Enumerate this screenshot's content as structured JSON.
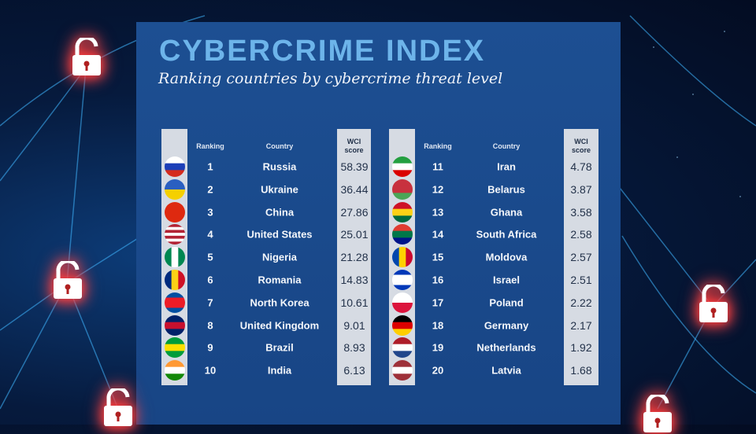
{
  "title": "CYBERCRIME INDEX",
  "subtitle": "Ranking countries by cybercrime threat level",
  "colors": {
    "title": "#6db4ea",
    "panel": "#1a4a8c",
    "score_box": "#d6dbe3",
    "lock_glow": "#ff3030"
  },
  "chart_data": {
    "type": "table",
    "columns": [
      "Ranking",
      "Country",
      "WCI score"
    ],
    "header_wci_lines": [
      "WCI",
      "score"
    ],
    "rows": [
      {
        "rank": 1,
        "country": "Russia",
        "score": 58.39,
        "flag": {
          "dir": "h",
          "colors": [
            "#ffffff",
            "#1c3fb8",
            "#d52b1e"
          ]
        }
      },
      {
        "rank": 2,
        "country": "Ukraine",
        "score": 36.44,
        "flag": {
          "dir": "h",
          "colors": [
            "#2a5fc1",
            "#f5d000"
          ]
        }
      },
      {
        "rank": 3,
        "country": "China",
        "score": 27.86,
        "flag": {
          "dir": "h",
          "colors": [
            "#de2910"
          ]
        }
      },
      {
        "rank": 4,
        "country": "United States",
        "score": 25.01,
        "flag": {
          "dir": "h",
          "colors": [
            "#b22234",
            "#ffffff",
            "#b22234",
            "#ffffff",
            "#b22234",
            "#ffffff",
            "#b22234"
          ]
        }
      },
      {
        "rank": 5,
        "country": "Nigeria",
        "score": 21.28,
        "flag": {
          "dir": "v",
          "colors": [
            "#008751",
            "#ffffff",
            "#008751"
          ]
        }
      },
      {
        "rank": 6,
        "country": "Romania",
        "score": 14.83,
        "flag": {
          "dir": "v",
          "colors": [
            "#002b7f",
            "#fcd116",
            "#ce1126"
          ]
        }
      },
      {
        "rank": 7,
        "country": "North Korea",
        "score": 10.61,
        "flag": {
          "dir": "h",
          "colors": [
            "#024fa2",
            "#ed1c27",
            "#ed1c27",
            "#024fa2"
          ]
        }
      },
      {
        "rank": 8,
        "country": "United Kingdom",
        "score": 9.01,
        "flag": {
          "dir": "h",
          "colors": [
            "#012169",
            "#c8102e",
            "#012169"
          ]
        }
      },
      {
        "rank": 9,
        "country": "Brazil",
        "score": 8.93,
        "flag": {
          "dir": "h",
          "colors": [
            "#009c3b",
            "#fedf00",
            "#009c3b"
          ]
        }
      },
      {
        "rank": 10,
        "country": "India",
        "score": 6.13,
        "flag": {
          "dir": "h",
          "colors": [
            "#ff9933",
            "#ffffff",
            "#138808"
          ]
        }
      },
      {
        "rank": 11,
        "country": "Iran",
        "score": 4.78,
        "flag": {
          "dir": "h",
          "colors": [
            "#239f40",
            "#ffffff",
            "#da0000"
          ]
        }
      },
      {
        "rank": 12,
        "country": "Belarus",
        "score": 3.87,
        "flag": {
          "dir": "h",
          "colors": [
            "#c8313e",
            "#c8313e",
            "#4aa657"
          ]
        }
      },
      {
        "rank": 13,
        "country": "Ghana",
        "score": 3.58,
        "flag": {
          "dir": "h",
          "colors": [
            "#ce1126",
            "#fcd116",
            "#006b3f"
          ]
        }
      },
      {
        "rank": 14,
        "country": "South Africa",
        "score": 2.58,
        "flag": {
          "dir": "h",
          "colors": [
            "#e03c31",
            "#007749",
            "#001489"
          ]
        }
      },
      {
        "rank": 15,
        "country": "Moldova",
        "score": 2.57,
        "flag": {
          "dir": "v",
          "colors": [
            "#0046ae",
            "#ffd200",
            "#cc092f"
          ]
        }
      },
      {
        "rank": 16,
        "country": "Israel",
        "score": 2.51,
        "flag": {
          "dir": "h",
          "colors": [
            "#0038b8",
            "#ffffff",
            "#ffffff",
            "#0038b8"
          ]
        }
      },
      {
        "rank": 17,
        "country": "Poland",
        "score": 2.22,
        "flag": {
          "dir": "h",
          "colors": [
            "#ffffff",
            "#dc143c"
          ]
        }
      },
      {
        "rank": 18,
        "country": "Germany",
        "score": 2.17,
        "flag": {
          "dir": "h",
          "colors": [
            "#000000",
            "#dd0000",
            "#ffce00"
          ]
        }
      },
      {
        "rank": 19,
        "country": "Netherlands",
        "score": 1.92,
        "flag": {
          "dir": "h",
          "colors": [
            "#ae1c28",
            "#ffffff",
            "#21468b"
          ]
        }
      },
      {
        "rank": 20,
        "country": "Latvia",
        "score": 1.68,
        "flag": {
          "dir": "h",
          "colors": [
            "#9e3039",
            "#ffffff",
            "#9e3039"
          ]
        }
      }
    ]
  }
}
